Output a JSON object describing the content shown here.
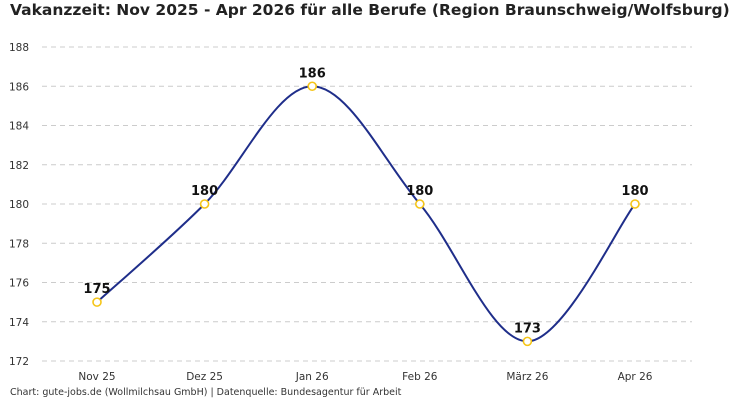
{
  "title": "Vakanzzeit: Nov 2025 - Apr 2026 für alle Berufe (Region Braunschweig/Wolfsburg)",
  "footer": "Chart: gute-jobs.de (Wollmilchsau GmbH) | Datenquelle: Bundesagentur für Arbeit",
  "colors": {
    "line": "#1f2e8a",
    "marker_stroke": "#f5c518",
    "marker_fill": "#ffffff",
    "grid": "#cccccc"
  },
  "chart_data": {
    "type": "line",
    "title": "Vakanzzeit: Nov 2025 - Apr 2026 für alle Berufe (Region Braunschweig/Wolfsburg)",
    "xlabel": "",
    "ylabel": "",
    "categories": [
      "Nov 25",
      "Dez 25",
      "Jan 26",
      "Feb 26",
      "März 26",
      "Apr 26"
    ],
    "values": [
      175,
      180,
      186,
      180,
      173,
      180
    ],
    "ylim": [
      172,
      188
    ],
    "yticks": [
      172,
      174,
      176,
      178,
      180,
      182,
      184,
      186,
      188
    ],
    "grid": true,
    "grid_style": "dashed-horizontal",
    "smooth": true,
    "data_labels": true,
    "legend": "none"
  }
}
